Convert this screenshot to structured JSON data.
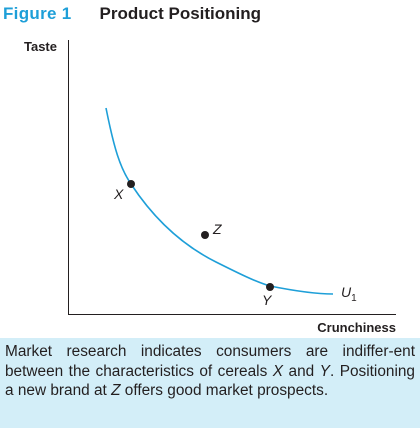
{
  "figure": {
    "number": "Figure 1",
    "title": "Product Positioning"
  },
  "axes": {
    "y_label": "Taste",
    "x_label": "Crunchiness"
  },
  "curve": {
    "label_main": "U",
    "label_sub": "1"
  },
  "points": {
    "x": "X",
    "y": "Y",
    "z": "Z"
  },
  "colors": {
    "accent": "#1e9fd8",
    "curve": "#1e9fd8",
    "caption_bg": "#d3eef8",
    "text": "#231f20"
  },
  "caption": {
    "segments": [
      "Market research indicates consumers are indiffer-ent between the characteristics of cereals ",
      "X",
      " and ",
      "Y",
      ". Positioning a new brand at ",
      "Z",
      " offers good market prospects."
    ]
  }
}
